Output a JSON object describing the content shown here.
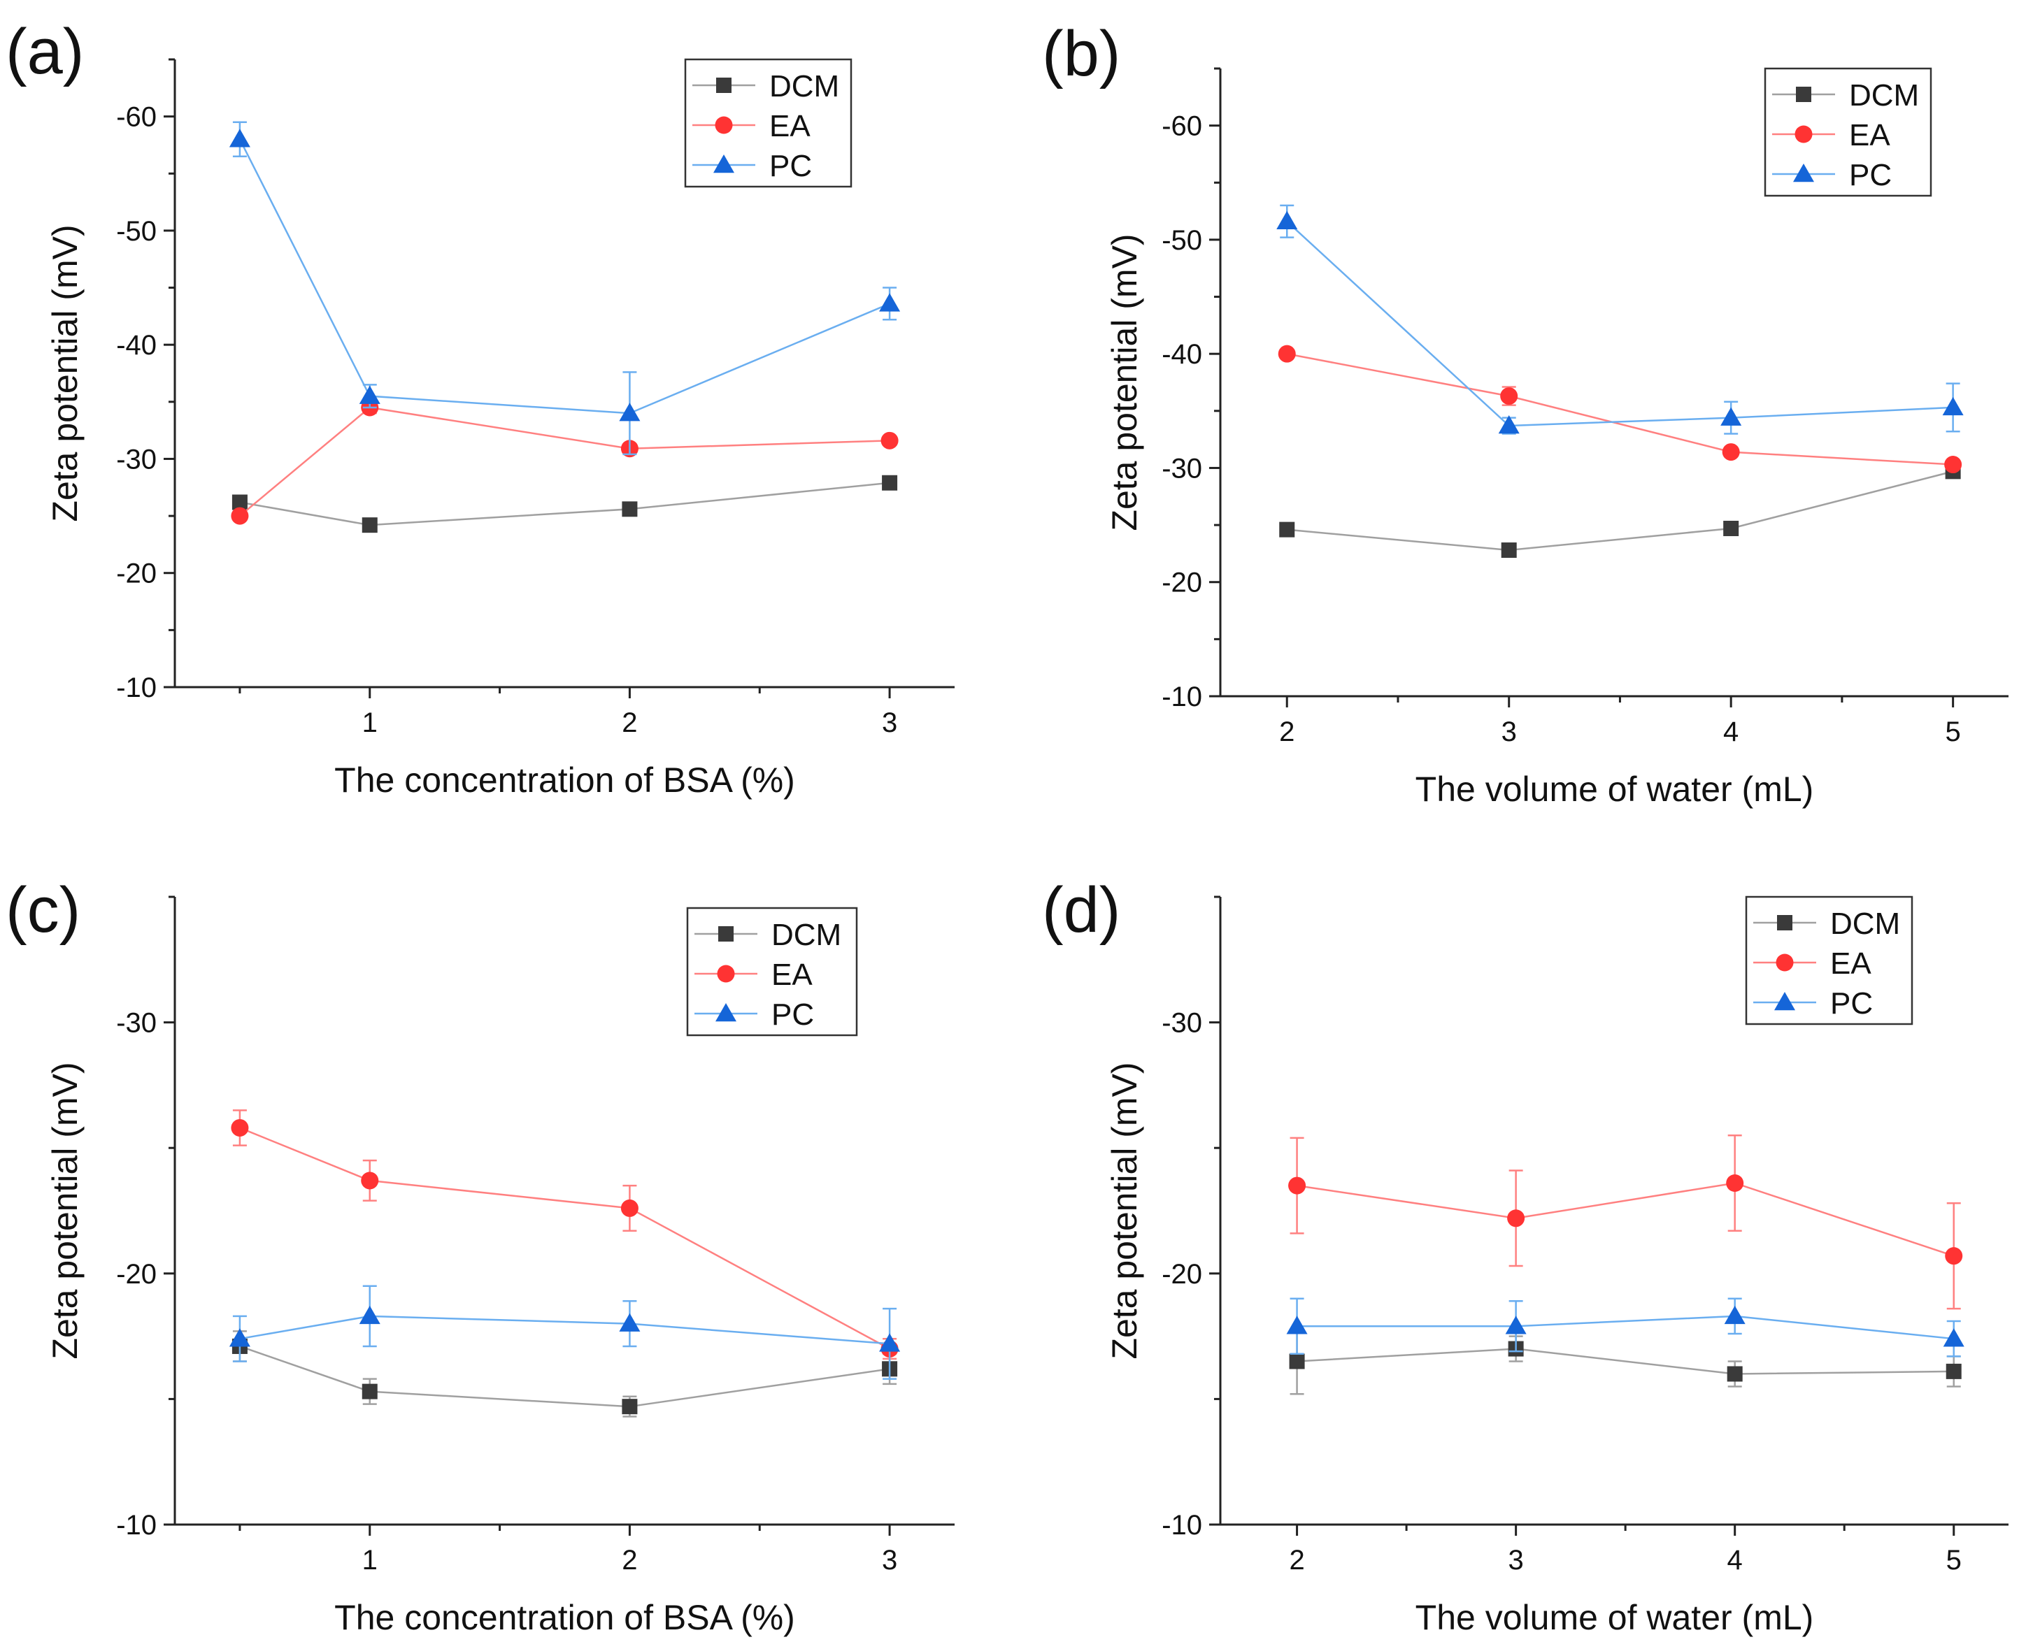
{
  "chart_data": [
    {
      "type": "line",
      "panel_label": "(a)",
      "xlabel": "The concentration of BSA (%)",
      "ylabel": "Zeta potential (mV)",
      "xlim": [
        0.25,
        3.25
      ],
      "ylim": [
        -10,
        -65
      ],
      "xticks": [
        1,
        2,
        3
      ],
      "xtick_labels": [
        "1",
        "2",
        "3"
      ],
      "yticks": [
        -10,
        -20,
        -30,
        -40,
        -50,
        -60
      ],
      "ytick_labels": [
        "-10",
        "-20",
        "-30",
        "-40",
        "-50",
        "-60"
      ],
      "x": [
        0.5,
        1,
        2,
        3
      ],
      "legend_position": "top-right",
      "series": [
        {
          "name": "DCM",
          "color": "#3a3a3a",
          "line_color": "#a0a0a0",
          "marker": "square",
          "values": [
            -26.2,
            -24.2,
            -25.6,
            -27.9
          ],
          "errors": [
            0.3,
            0.3,
            0.3,
            0.3
          ]
        },
        {
          "name": "EA",
          "color": "#ff3333",
          "line_color": "#ff8080",
          "marker": "circle",
          "values": [
            -25.0,
            -34.5,
            -30.9,
            -31.6
          ],
          "errors": [
            0.3,
            0.5,
            0.4,
            0.3
          ]
        },
        {
          "name": "PC",
          "color": "#1565d8",
          "line_color": "#6aaef0",
          "marker": "triangle",
          "values": [
            -58.0,
            -35.5,
            -34.0,
            -43.6
          ],
          "errors": [
            1.5,
            1.0,
            3.6,
            1.4
          ]
        }
      ]
    },
    {
      "type": "line",
      "panel_label": "(b)",
      "xlabel": "The volume of water (mL)",
      "ylabel": "Zeta potential (mV)",
      "xlim": [
        1.7,
        5.25
      ],
      "ylim": [
        -10,
        -65
      ],
      "xticks": [
        2,
        3,
        4,
        5
      ],
      "xtick_labels": [
        "2",
        "3",
        "4",
        "5"
      ],
      "yticks": [
        -10,
        -20,
        -30,
        -40,
        -50,
        -60
      ],
      "ytick_labels": [
        "-10",
        "-20",
        "-30",
        "-40",
        "-50",
        "-60"
      ],
      "x": [
        2,
        3,
        4,
        5
      ],
      "legend_position": "top-right",
      "series": [
        {
          "name": "DCM",
          "color": "#3a3a3a",
          "line_color": "#a0a0a0",
          "marker": "square",
          "values": [
            -24.6,
            -22.8,
            -24.7,
            -29.7
          ],
          "errors": [
            0.3,
            0.3,
            0.3,
            0.3
          ]
        },
        {
          "name": "EA",
          "color": "#ff3333",
          "line_color": "#ff8080",
          "marker": "circle",
          "values": [
            -40.0,
            -36.3,
            -31.4,
            -30.3
          ],
          "errors": [
            0.3,
            0.8,
            0.4,
            0.3
          ]
        },
        {
          "name": "PC",
          "color": "#1565d8",
          "line_color": "#6aaef0",
          "marker": "triangle",
          "values": [
            -51.6,
            -33.7,
            -34.4,
            -35.3
          ],
          "errors": [
            1.4,
            0.7,
            1.4,
            2.1
          ]
        }
      ]
    },
    {
      "type": "line",
      "panel_label": "(c)",
      "xlabel": "The concentration of BSA (%)",
      "ylabel": "Zeta potential (mV)",
      "xlim": [
        0.25,
        3.25
      ],
      "ylim": [
        -10,
        -35
      ],
      "xticks": [
        1,
        2,
        3
      ],
      "xtick_labels": [
        "1",
        "2",
        "3"
      ],
      "yticks": [
        -10,
        -20,
        -30
      ],
      "ytick_labels": [
        "-10",
        "-20",
        "-30"
      ],
      "x": [
        0.5,
        1,
        2,
        3
      ],
      "legend_position": "top-right",
      "series": [
        {
          "name": "DCM",
          "color": "#3a3a3a",
          "line_color": "#a0a0a0",
          "marker": "square",
          "values": [
            -17.1,
            -15.3,
            -14.7,
            -16.2
          ],
          "errors": [
            0.6,
            0.5,
            0.4,
            0.6
          ]
        },
        {
          "name": "EA",
          "color": "#ff3333",
          "line_color": "#ff8080",
          "marker": "circle",
          "values": [
            -25.8,
            -23.7,
            -22.6,
            -17.0
          ],
          "errors": [
            0.7,
            0.8,
            0.9,
            0.4
          ]
        },
        {
          "name": "PC",
          "color": "#1565d8",
          "line_color": "#6aaef0",
          "marker": "triangle",
          "values": [
            -17.4,
            -18.3,
            -18.0,
            -17.2
          ],
          "errors": [
            0.9,
            1.2,
            0.9,
            1.4
          ]
        }
      ]
    },
    {
      "type": "line",
      "panel_label": "(d)",
      "xlabel": "The volume of water (mL)",
      "ylabel": "Zeta potential (mV)",
      "xlim": [
        1.65,
        5.25
      ],
      "ylim": [
        -10,
        -35
      ],
      "xticks": [
        2,
        3,
        4,
        5
      ],
      "xtick_labels": [
        "2",
        "3",
        "4",
        "5"
      ],
      "yticks": [
        -10,
        -20,
        -30
      ],
      "ytick_labels": [
        "-10",
        "-20",
        "-30"
      ],
      "x": [
        2,
        3,
        4,
        5
      ],
      "legend_position": "top-right",
      "series": [
        {
          "name": "DCM",
          "color": "#3a3a3a",
          "line_color": "#a0a0a0",
          "marker": "square",
          "values": [
            -16.5,
            -17.0,
            -16.0,
            -16.1
          ],
          "errors": [
            1.3,
            0.5,
            0.5,
            0.6
          ]
        },
        {
          "name": "EA",
          "color": "#ff3333",
          "line_color": "#ff8080",
          "marker": "circle",
          "values": [
            -23.5,
            -22.2,
            -23.6,
            -20.7
          ],
          "errors": [
            1.9,
            1.9,
            1.9,
            2.1
          ]
        },
        {
          "name": "PC",
          "color": "#1565d8",
          "line_color": "#6aaef0",
          "marker": "triangle",
          "values": [
            -17.9,
            -17.9,
            -18.3,
            -17.4
          ],
          "errors": [
            1.1,
            1.0,
            0.7,
            0.7
          ]
        }
      ]
    }
  ]
}
